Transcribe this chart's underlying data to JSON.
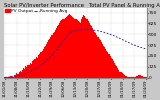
{
  "title": "Solar PV/Inverter Performance   Total PV Panel & Running Average Power Output",
  "title_fontsize": 3.8,
  "bar_color": "#ff0000",
  "line_color": "#0000cc",
  "bg_color": "#c8c8c8",
  "plot_bg": "#ffffff",
  "ylim": [
    0,
    800
  ],
  "yticks": [
    0,
    125,
    250,
    375,
    500,
    625,
    750
  ],
  "ytick_labels": [
    "0",
    "125",
    "250",
    "375",
    "500",
    "625",
    "750"
  ],
  "n_bars": 130,
  "bar_heights": [
    2,
    5,
    8,
    3,
    10,
    15,
    20,
    8,
    5,
    25,
    35,
    50,
    40,
    60,
    80,
    70,
    90,
    110,
    100,
    130,
    120,
    150,
    140,
    170,
    160,
    190,
    200,
    220,
    210,
    240,
    230,
    260,
    270,
    290,
    310,
    330,
    350,
    370,
    390,
    410,
    430,
    450,
    470,
    490,
    510,
    530,
    550,
    570,
    590,
    610,
    630,
    650,
    660,
    670,
    680,
    690,
    700,
    710,
    720,
    730,
    720,
    710,
    700,
    690,
    680,
    670,
    660,
    650,
    640,
    630,
    680,
    700,
    720,
    710,
    690,
    670,
    650,
    630,
    610,
    590,
    570,
    550,
    530,
    510,
    490,
    470,
    450,
    430,
    410,
    390,
    370,
    350,
    330,
    310,
    290,
    270,
    250,
    230,
    210,
    190,
    170,
    150,
    130,
    110,
    90,
    70,
    60,
    50,
    40,
    30,
    20,
    15,
    10,
    8,
    5,
    3,
    2,
    5,
    8,
    12,
    15,
    20,
    25,
    30,
    25,
    20,
    15,
    10,
    5,
    2
  ],
  "avg_line": [
    3,
    4,
    5,
    5,
    6,
    8,
    10,
    10,
    10,
    12,
    15,
    18,
    20,
    23,
    27,
    30,
    34,
    38,
    42,
    47,
    52,
    57,
    62,
    68,
    74,
    80,
    87,
    94,
    101,
    109,
    117,
    125,
    134,
    143,
    153,
    163,
    174,
    185,
    196,
    208,
    220,
    233,
    246,
    260,
    274,
    288,
    303,
    318,
    334,
    350,
    366,
    383,
    399,
    416,
    433,
    450,
    466,
    482,
    498,
    514,
    520,
    526,
    531,
    535,
    539,
    542,
    544,
    546,
    547,
    548,
    549,
    550,
    551,
    552,
    552,
    552,
    552,
    552,
    551,
    550,
    549,
    548,
    546,
    544,
    542,
    540,
    537,
    534,
    531,
    528,
    525,
    521,
    517,
    513,
    509,
    505,
    500,
    495,
    490,
    485,
    480,
    474,
    469,
    463,
    457,
    451,
    445,
    439,
    433,
    427,
    421,
    415,
    409,
    403,
    397,
    391,
    385,
    380,
    375,
    370,
    365,
    360,
    356,
    352,
    348,
    344,
    340,
    337,
    334,
    331
  ],
  "xtick_labels": [
    "11/01/08",
    "11/08/08",
    "11/15/08",
    "11/22/08",
    "11/29/08",
    "12/06/08",
    "12/13/08",
    "12/20/08",
    "12/27/08",
    "01/03/09",
    "01/10/09",
    "01/17/09",
    "01/24/09"
  ],
  "xtick_fontsize": 2.8,
  "ytick_fontsize": 3.2,
  "grid_color": "#aaaaaa",
  "legend_labels": [
    "PV Output",
    "Running Avg"
  ],
  "legend_fontsize": 3.2
}
